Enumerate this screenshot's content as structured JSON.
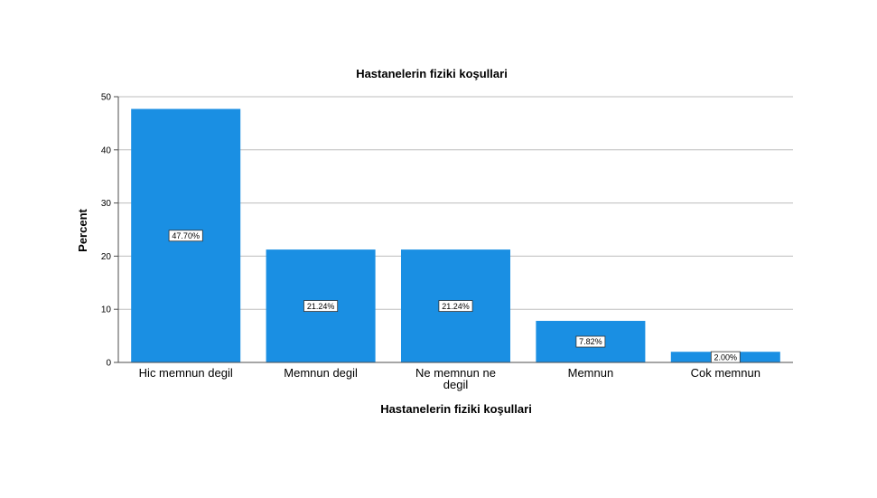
{
  "chart_data": {
    "type": "bar",
    "title": "Hastanelerin fiziki koşullari",
    "xlabel": "Hastanelerin fiziki koşullari",
    "ylabel": "Percent",
    "categories": [
      "Hic memnun degil",
      "Memnun degil",
      "Ne memnun ne degil",
      "Memnun",
      "Cok memnun"
    ],
    "category_lines": [
      [
        "Hic memnun degil"
      ],
      [
        "Memnun degil"
      ],
      [
        "Ne memnun ne",
        "degil"
      ],
      [
        "Memnun"
      ],
      [
        "Cok memnun"
      ]
    ],
    "values": [
      47.7,
      21.24,
      21.24,
      7.82,
      2.0
    ],
    "data_labels": [
      "47.70%",
      "21.24%",
      "21.24%",
      "7.82%",
      "2.00%"
    ],
    "ylim": [
      0,
      50
    ],
    "yticks": [
      0,
      10,
      20,
      30,
      40,
      50
    ],
    "grid": true,
    "colors": {
      "bar": "#1a8fe3",
      "grid": "#bdbdbd",
      "axis": "#4d4d4d"
    }
  }
}
